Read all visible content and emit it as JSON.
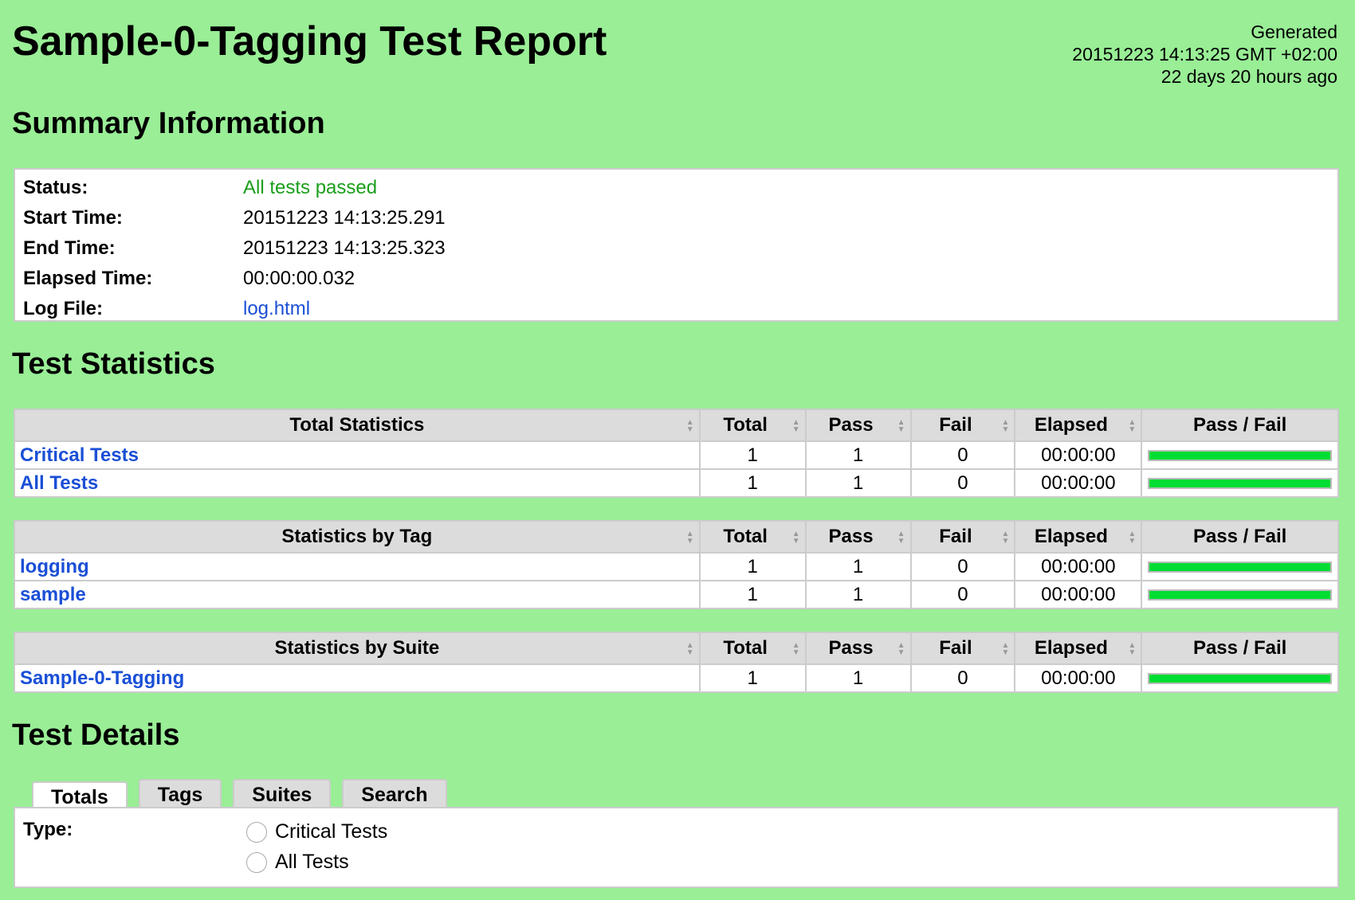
{
  "title": "Sample-0-Tagging Test Report",
  "generated": {
    "label": "Generated",
    "timestamp": "20151223 14:13:25 GMT +02:00",
    "ago": "22 days 20 hours ago"
  },
  "summary": {
    "heading": "Summary Information",
    "rows": [
      {
        "key": "Status:",
        "value": "All tests passed"
      },
      {
        "key": "Start Time:",
        "value": "20151223 14:13:25.291"
      },
      {
        "key": "End Time:",
        "value": "20151223 14:13:25.323"
      },
      {
        "key": "Elapsed Time:",
        "value": "00:00:00.032"
      },
      {
        "key": "Log File:",
        "value": "log.html"
      }
    ],
    "status_color": "#1b9e1b"
  },
  "statistics": {
    "heading": "Test Statistics",
    "columns": [
      "Total",
      "Pass",
      "Fail",
      "Elapsed",
      "Pass / Fail"
    ],
    "tables": [
      {
        "title": "Total Statistics",
        "rows": [
          {
            "name": "Critical Tests",
            "total": "1",
            "pass": "1",
            "fail": "0",
            "elapsed": "00:00:00",
            "pass_fraction": 1
          },
          {
            "name": "All Tests",
            "total": "1",
            "pass": "1",
            "fail": "0",
            "elapsed": "00:00:00",
            "pass_fraction": 1
          }
        ]
      },
      {
        "title": "Statistics by Tag",
        "rows": [
          {
            "name": "logging",
            "total": "1",
            "pass": "1",
            "fail": "0",
            "elapsed": "00:00:00",
            "pass_fraction": 1
          },
          {
            "name": "sample",
            "total": "1",
            "pass": "1",
            "fail": "0",
            "elapsed": "00:00:00",
            "pass_fraction": 1
          }
        ]
      },
      {
        "title": "Statistics by Suite",
        "rows": [
          {
            "name": "Sample-0-Tagging",
            "total": "1",
            "pass": "1",
            "fail": "0",
            "elapsed": "00:00:00",
            "pass_fraction": 1
          }
        ]
      }
    ]
  },
  "details": {
    "heading": "Test Details",
    "tabs": [
      "Totals",
      "Tags",
      "Suites",
      "Search"
    ],
    "active_tab": "Totals",
    "type_label": "Type:",
    "options": [
      "Critical Tests",
      "All Tests"
    ]
  },
  "colors": {
    "background": "#99ee96",
    "pass": "#00dd33",
    "link": "#1a4fd6"
  }
}
